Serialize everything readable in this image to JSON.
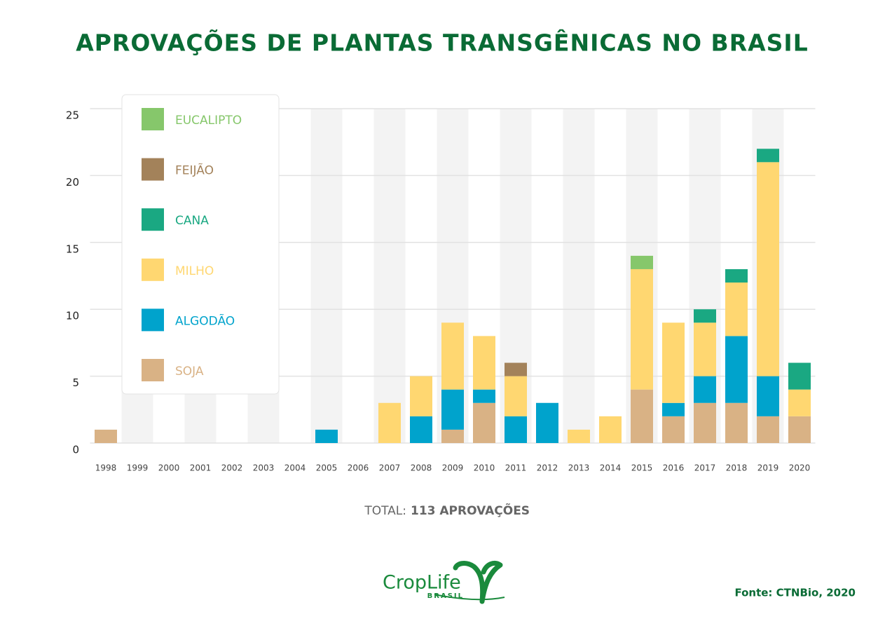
{
  "chart_data": {
    "type": "stacked_bar",
    "title": "APROVAÇÕES DE PLANTAS TRANSGÊNICAS NO BRASIL",
    "categories": [
      "1998",
      "1999",
      "2000",
      "2001",
      "2002",
      "2003",
      "2004",
      "2005",
      "2006",
      "2007",
      "2008",
      "2009",
      "2010",
      "2011",
      "2012",
      "2013",
      "2014",
      "2015",
      "2016",
      "2017",
      "2018",
      "2019",
      "2020"
    ],
    "series": [
      {
        "name": "SOJA",
        "color": "#d9b285",
        "values": [
          1,
          0,
          0,
          0,
          0,
          0,
          0,
          0,
          0,
          0,
          0,
          1,
          3,
          0,
          0,
          0,
          0,
          4,
          2,
          3,
          3,
          2,
          2
        ]
      },
      {
        "name": "ALGODÃO",
        "color": "#00a3cc",
        "values": [
          0,
          0,
          0,
          0,
          0,
          0,
          0,
          1,
          0,
          0,
          2,
          3,
          1,
          2,
          3,
          0,
          0,
          0,
          1,
          2,
          5,
          3,
          0
        ]
      },
      {
        "name": "MILHO",
        "color": "#ffd771",
        "values": [
          0,
          0,
          0,
          0,
          0,
          0,
          0,
          0,
          0,
          3,
          3,
          5,
          4,
          3,
          0,
          1,
          2,
          9,
          6,
          4,
          4,
          16,
          2
        ]
      },
      {
        "name": "CANA",
        "color": "#1aa882",
        "values": [
          0,
          0,
          0,
          0,
          0,
          0,
          0,
          0,
          0,
          0,
          0,
          0,
          0,
          0,
          0,
          0,
          0,
          0,
          0,
          1,
          1,
          1,
          2
        ]
      },
      {
        "name": "FEIJÃO",
        "color": "#a3825a",
        "values": [
          0,
          0,
          0,
          0,
          0,
          0,
          0,
          0,
          0,
          0,
          0,
          0,
          0,
          1,
          0,
          0,
          0,
          0,
          0,
          0,
          0,
          0,
          0
        ]
      },
      {
        "name": "EUCALIPTO",
        "color": "#86c76b",
        "values": [
          0,
          0,
          0,
          0,
          0,
          0,
          0,
          0,
          0,
          0,
          0,
          0,
          0,
          0,
          0,
          0,
          0,
          1,
          0,
          0,
          0,
          0,
          0
        ]
      }
    ],
    "ylim": [
      0,
      25
    ],
    "yticks": [
      0,
      5,
      10,
      15,
      20,
      25
    ],
    "grid": true,
    "total_label": "TOTAL:",
    "total_value": "113 APROVAÇÕES",
    "logo": "CropLife",
    "logo_sub": "BRASIL",
    "source": "Fonte: CTNBio, 2020"
  }
}
